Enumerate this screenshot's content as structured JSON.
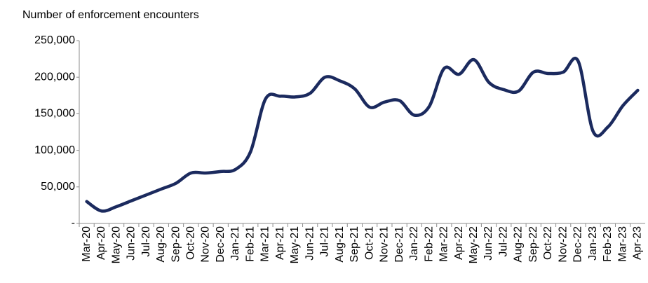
{
  "chart_data": {
    "type": "line",
    "y_label": "Number of enforcement encounters",
    "categories": [
      "Mar-20",
      "Apr-20",
      "May-20",
      "Jun-20",
      "Jul-20",
      "Aug-20",
      "Sep-20",
      "Oct-20",
      "Nov-20",
      "Dec-20",
      "Jan-21",
      "Feb-21",
      "Mar-21",
      "Apr-21",
      "May-21",
      "Jun-21",
      "Jul-21",
      "Aug-21",
      "Sep-21",
      "Oct-21",
      "Nov-21",
      "Dec-21",
      "Jan-22",
      "Feb-22",
      "Mar-22",
      "Apr-22",
      "May-22",
      "Jun-22",
      "Jul-22",
      "Aug-22",
      "Sep-22",
      "Oct-22",
      "Nov-22",
      "Dec-22",
      "Jan-23",
      "Feb-23",
      "Mar-23",
      "Apr-23"
    ],
    "series": [
      {
        "name": "Encounters",
        "color": "#1b2a5e",
        "values": [
          30000,
          17000,
          23000,
          31000,
          39000,
          47000,
          55000,
          69000,
          69000,
          71000,
          74000,
          98000,
          170000,
          174000,
          173000,
          178000,
          200000,
          195000,
          184000,
          159000,
          166000,
          168000,
          148000,
          160000,
          212000,
          204000,
          224000,
          193000,
          183000,
          181000,
          207000,
          205000,
          207000,
          222000,
          126000,
          132000,
          161000,
          182000
        ]
      }
    ],
    "ylim": [
      0,
      250000
    ],
    "yticks": [
      {
        "value": 0,
        "label": "-"
      },
      {
        "value": 50000,
        "label": "50,000"
      },
      {
        "value": 100000,
        "label": "100,000"
      },
      {
        "value": 150000,
        "label": "150,000"
      },
      {
        "value": 200000,
        "label": "200,000"
      },
      {
        "value": 250000,
        "label": "250,000"
      }
    ],
    "grid": false
  }
}
